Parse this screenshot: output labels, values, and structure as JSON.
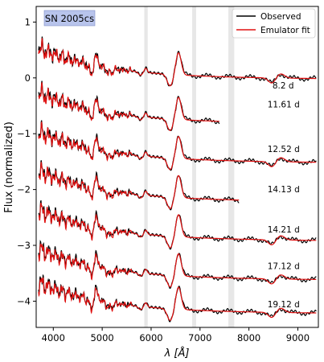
{
  "chart_data": {
    "type": "line",
    "xlabel": "λ [Å]",
    "ylabel": "Flux (normalized)",
    "xlim": [
      3650,
      9420
    ],
    "ylim": [
      -4.47,
      1.28
    ],
    "x_ticks": [
      4000,
      5000,
      6000,
      7000,
      8000,
      9000
    ],
    "x_tick_labels": [
      "4000",
      "5000",
      "6000",
      "7000",
      "8000",
      "9000"
    ],
    "y_ticks": [
      1,
      0,
      -1,
      -2,
      -3,
      -4
    ],
    "y_tick_labels": [
      "1",
      "0",
      "−1",
      "−2",
      "−3",
      "−4"
    ],
    "grid": false,
    "legend_position": "top-right",
    "annotation": "SN 2005cs",
    "telluric_bands": [
      [
        5860,
        5930
      ],
      [
        6840,
        6920
      ],
      [
        7580,
        7700
      ]
    ],
    "series": [
      {
        "name": "Observed",
        "color": "#000000"
      },
      {
        "name": "Emulator fit",
        "color": "#e01010"
      }
    ],
    "epochs": [
      {
        "label": "8.2 d",
        "offset": 0.0,
        "x_end": 9380
      },
      {
        "label": "11.61 d",
        "offset": -0.8,
        "x_end": 7400
      },
      {
        "label": "12.52 d",
        "offset": -1.5,
        "x_end": 9380
      },
      {
        "label": "14.13 d",
        "offset": -2.2,
        "x_end": 7800
      },
      {
        "label": "14.21 d",
        "offset": -2.9,
        "x_end": 9380
      },
      {
        "label": "17.12 d",
        "offset": -3.6,
        "x_end": 9380
      },
      {
        "label": "19.12 d",
        "offset": -4.2,
        "x_end": 9380
      }
    ]
  }
}
